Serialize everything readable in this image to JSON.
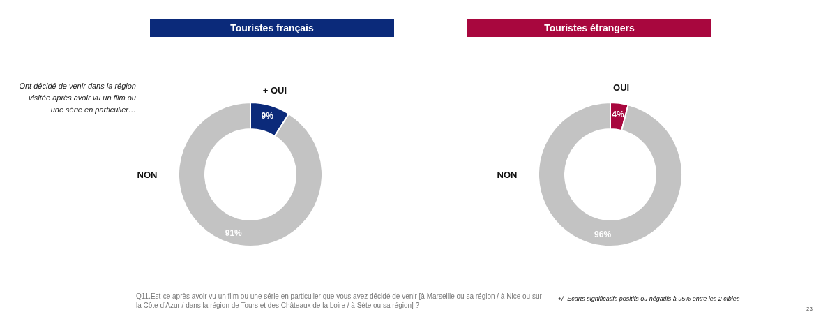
{
  "chart_data": [
    {
      "type": "donut",
      "title": "Touristes français",
      "categories": [
        "+ OUI",
        "NON"
      ],
      "values": [
        9,
        91
      ],
      "colors": [
        "#0b2a7a",
        "#c3c3c3"
      ],
      "value_labels": [
        "9%",
        "91%"
      ],
      "annotations": [
        "Ont décidé de venir dans la région visitée après avoir vu un film ou une série en particulier…",
        "Q11.Est-ce après avoir vu un film ou une série en particulier que vous avez décidé de venir [à Marseille ou sa région / à Nice ou sur la Côte d’Azur / dans la région de Tours et des Châteaux de la Loire / à Sète ou sa région] ?"
      ]
    },
    {
      "type": "donut",
      "title": "Touristes étrangers",
      "categories": [
        "OUI",
        "NON"
      ],
      "values": [
        4,
        96
      ],
      "colors": [
        "#a8073e",
        "#c3c3c3"
      ],
      "value_labels": [
        "4%",
        "96%"
      ],
      "annotations": [
        "+/- Ecarts significatifs positifs ou négatifs à 95% entre les 2 cibles",
        "23"
      ]
    }
  ]
}
